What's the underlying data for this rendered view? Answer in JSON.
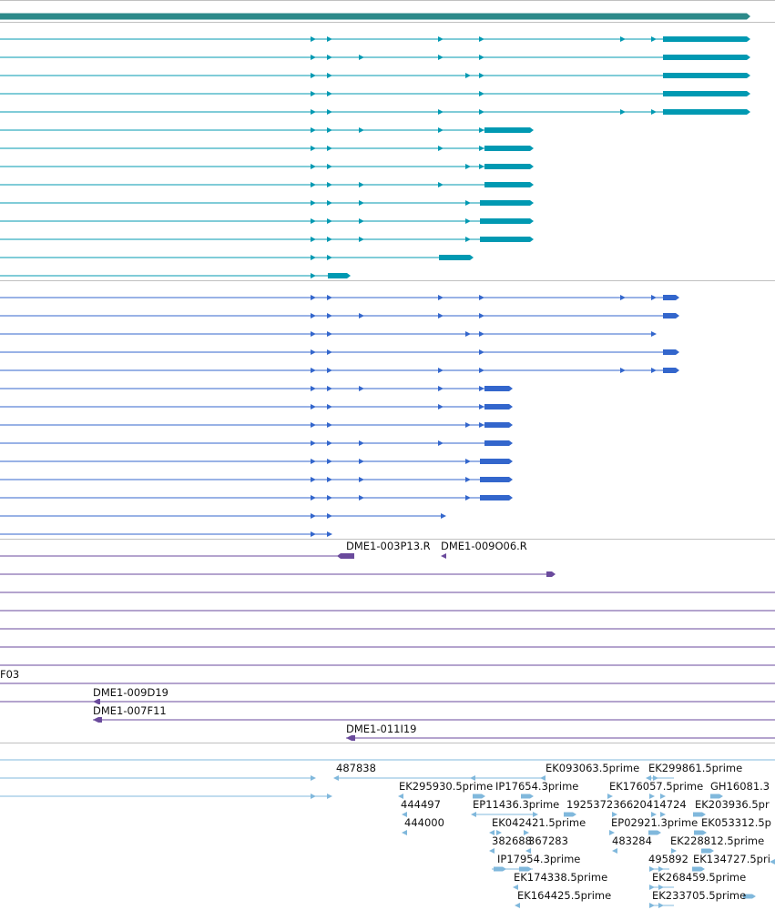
{
  "colors": {
    "gene": "#2d8a8a",
    "transcript_teal": "#0099b2",
    "transcript_blue": "#3366cc",
    "clone": "#6a4a9c",
    "est": "#80b8dc",
    "separator": "#c0c0c0",
    "label": "#111111"
  },
  "icons": [
    "arrow-right-icon",
    "arrow-left-icon"
  ],
  "clone_labels": {
    "dme1_003p13_r": "DME1-003P13.R",
    "dme1_009o06_r": "DME1-009O06.R",
    "f03": "F03",
    "dme1_009d19": "DME1-009D19",
    "dme1_007f11": "DME1-007F11",
    "dme1_011i19": "DME1-011I19"
  },
  "est_labels": {
    "l487838": "487838",
    "ek093063": "EK093063.5prime",
    "ek299861": "EK299861.5prime",
    "ek295930": "EK295930.5prime",
    "ip17654": "IP17654.3prime",
    "ek176057": "EK176057.5prime",
    "gh16081": "GH16081.3",
    "l444497": "444497",
    "ep11436": "EP11436.3prime",
    "combo": "192537236620414724",
    "ek203936": "EK203936.5pr",
    "l444000": "444000",
    "ek042421": "EK042421.5prime",
    "ep02921": "EP02921.3prime",
    "ek053312": "EK053312.5p",
    "l382688": "382688",
    "l367283": "367283",
    "l483284": "483284",
    "ek228812": "EK228812.5prime",
    "ip17954": "IP17954.3prime",
    "l495892": "495892",
    "ek134727": "EK134727.5pri",
    "ek174338": "EK174338.5prime",
    "ek268459": "EK268459.5prime",
    "ek164425": "EK164425.5prime",
    "ek233705": "EK233705.5prime"
  }
}
